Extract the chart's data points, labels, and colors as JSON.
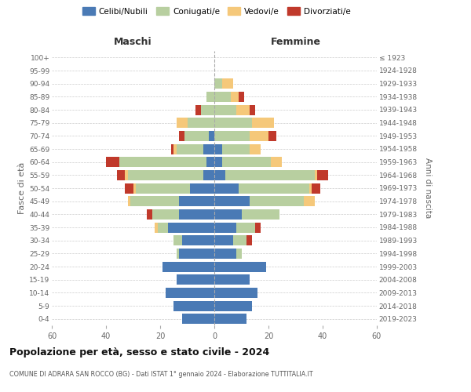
{
  "age_groups": [
    "0-4",
    "5-9",
    "10-14",
    "15-19",
    "20-24",
    "25-29",
    "30-34",
    "35-39",
    "40-44",
    "45-49",
    "50-54",
    "55-59",
    "60-64",
    "65-69",
    "70-74",
    "75-79",
    "80-84",
    "85-89",
    "90-94",
    "95-99",
    "100+"
  ],
  "birth_years": [
    "2019-2023",
    "2014-2018",
    "2009-2013",
    "2004-2008",
    "1999-2003",
    "1994-1998",
    "1989-1993",
    "1984-1988",
    "1979-1983",
    "1974-1978",
    "1969-1973",
    "1964-1968",
    "1959-1963",
    "1954-1958",
    "1949-1953",
    "1944-1948",
    "1939-1943",
    "1934-1938",
    "1929-1933",
    "1924-1928",
    "≤ 1923"
  ],
  "maschi": {
    "celibi": [
      12,
      15,
      18,
      14,
      19,
      13,
      12,
      17,
      13,
      13,
      9,
      4,
      3,
      4,
      2,
      0,
      0,
      0,
      0,
      0,
      0
    ],
    "coniugati": [
      0,
      0,
      0,
      0,
      0,
      1,
      3,
      4,
      10,
      18,
      20,
      28,
      32,
      10,
      9,
      10,
      5,
      3,
      0,
      0,
      0
    ],
    "vedovi": [
      0,
      0,
      0,
      0,
      0,
      0,
      0,
      1,
      0,
      1,
      1,
      1,
      0,
      1,
      0,
      4,
      0,
      0,
      0,
      0,
      0
    ],
    "divorziati": [
      0,
      0,
      0,
      0,
      0,
      0,
      0,
      0,
      2,
      0,
      3,
      3,
      5,
      1,
      2,
      0,
      2,
      0,
      0,
      0,
      0
    ]
  },
  "femmine": {
    "nubili": [
      12,
      14,
      16,
      13,
      19,
      8,
      7,
      8,
      10,
      13,
      9,
      4,
      3,
      3,
      0,
      0,
      0,
      0,
      0,
      0,
      0
    ],
    "coniugate": [
      0,
      0,
      0,
      0,
      0,
      2,
      5,
      7,
      14,
      20,
      26,
      33,
      18,
      10,
      13,
      14,
      8,
      6,
      3,
      0,
      0
    ],
    "vedove": [
      0,
      0,
      0,
      0,
      0,
      0,
      0,
      0,
      0,
      4,
      1,
      1,
      4,
      4,
      7,
      8,
      5,
      3,
      4,
      0,
      0
    ],
    "divorziate": [
      0,
      0,
      0,
      0,
      0,
      0,
      2,
      2,
      0,
      0,
      3,
      4,
      0,
      0,
      3,
      0,
      2,
      2,
      0,
      0,
      0
    ]
  },
  "colors": {
    "celibi": "#4a7ab5",
    "coniugati": "#b8cfa0",
    "vedovi": "#f5c87a",
    "divorziati": "#c0392b"
  },
  "title": "Popolazione per età, sesso e stato civile - 2024",
  "subtitle": "COMUNE DI ADRARA SAN ROCCO (BG) - Dati ISTAT 1° gennaio 2024 - Elaborazione TUTTITALIA.IT",
  "label_maschi": "Maschi",
  "label_femmine": "Femmine",
  "ylabel_left": "Fasce di età",
  "ylabel_right": "Anni di nascita",
  "xlim": 60,
  "legend_labels": [
    "Celibi/Nubili",
    "Coniugati/e",
    "Vedovi/e",
    "Divorziati/e"
  ],
  "bg_color": "#ffffff",
  "grid_color": "#cccccc",
  "text_color": "#666666"
}
